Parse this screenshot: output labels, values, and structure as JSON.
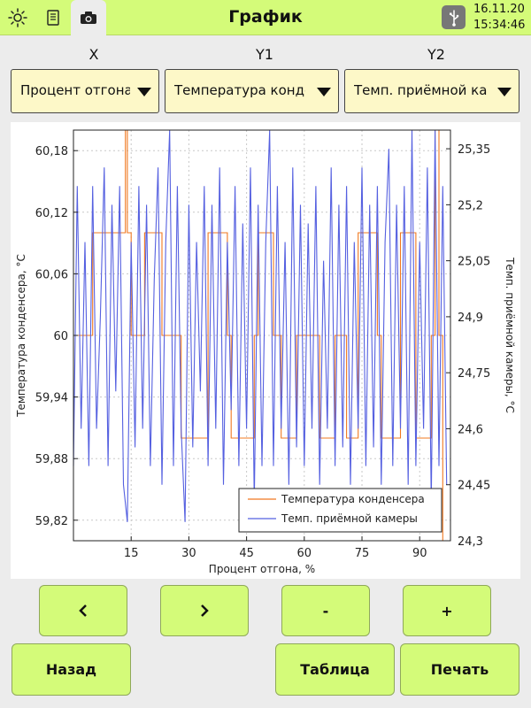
{
  "topbar": {
    "title": "График",
    "icons": [
      "sun-icon",
      "notebook-icon",
      "camera-icon",
      "usb-icon"
    ],
    "date": "16.11.20",
    "time": "15:34:46"
  },
  "axes": {
    "x_label": "X",
    "y1_label": "Y1",
    "y2_label": "Y2"
  },
  "selectors": {
    "x_value": "Процент отгона",
    "y1_value": "Температура конденсера",
    "y2_value": "Темп. приёмной камеры"
  },
  "buttons": {
    "prev": "‹",
    "next": "›",
    "zoom_out": "-",
    "zoom_in": "+",
    "back": "Назад",
    "table": "Таблица",
    "print": "Печать"
  },
  "colors": {
    "accent": "#d4fb79",
    "series1": "#f07820",
    "series2": "#5560e0"
  },
  "chart_data": {
    "type": "line",
    "xlabel": "Процент отгона, %",
    "ylabel": "Температура конденсера, °C",
    "y2label": "Темп. приёмной камеры, °C",
    "xlim": [
      0,
      98
    ],
    "ylim": [
      59.8,
      60.2
    ],
    "y2lim": [
      24.3,
      25.4
    ],
    "x_ticks": [
      15,
      30,
      45,
      60,
      75,
      90
    ],
    "x_tick_labels": [
      "15",
      "30",
      "45",
      "60",
      "75",
      "90"
    ],
    "y_ticks": [
      59.82,
      59.88,
      59.94,
      60,
      60.06,
      60.12,
      60.18
    ],
    "y_tick_labels": [
      "59,82",
      "59,88",
      "59,94",
      "60",
      "60,06",
      "60,12",
      "60,18"
    ],
    "y2_ticks": [
      24.3,
      24.45,
      24.6,
      24.75,
      24.9,
      25.05,
      25.2,
      25.35
    ],
    "y2_tick_labels": [
      "24,3",
      "24,45",
      "24,6",
      "24,75",
      "24,9",
      "25,05",
      "25,2",
      "25,35"
    ],
    "grid": true,
    "legend_position": "bottom-right",
    "series": [
      {
        "name": "Температура конденсера",
        "axis": "left",
        "x": [
          0,
          4,
          5,
          13,
          13.5,
          14,
          15,
          18,
          18.5,
          22,
          23,
          27,
          28,
          31,
          35,
          36,
          40,
          41,
          45,
          47,
          48,
          50,
          52,
          54,
          55,
          58,
          63,
          64,
          66,
          68,
          70,
          71,
          73,
          74,
          78,
          79,
          80,
          84,
          85,
          88,
          89,
          92,
          93,
          94,
          95,
          96
        ],
        "y": [
          60,
          60,
          60.1,
          60.1,
          60.2,
          60.1,
          60,
          60,
          60.1,
          60.1,
          60,
          60,
          59.9,
          59.9,
          60.1,
          60.1,
          60,
          59.9,
          59.9,
          60,
          60.1,
          60.1,
          60,
          59.9,
          59.9,
          60,
          60,
          59.9,
          59.9,
          60,
          60,
          59.9,
          59.9,
          60.1,
          60.1,
          60,
          59.9,
          59.9,
          60.1,
          60.1,
          59.9,
          59.9,
          60,
          60.2,
          60,
          59.8
        ]
      },
      {
        "name": "Темп. приёмной камеры",
        "axis": "right",
        "x": [
          0,
          1,
          2,
          3,
          4,
          5,
          6,
          7,
          8,
          9,
          10,
          11,
          12,
          13,
          14,
          15,
          16,
          17,
          18,
          19,
          20,
          21,
          22,
          23,
          24,
          25,
          26,
          27,
          28,
          29,
          30,
          31,
          32,
          33,
          34,
          35,
          36,
          37,
          38,
          39,
          40,
          41,
          42,
          43,
          44,
          45,
          46,
          47,
          48,
          49,
          50,
          51,
          52,
          53,
          54,
          55,
          56,
          57,
          58,
          59,
          60,
          61,
          62,
          63,
          64,
          65,
          66,
          67,
          68,
          69,
          70,
          71,
          72,
          73,
          74,
          75,
          76,
          77,
          78,
          79,
          80,
          81,
          82,
          83,
          84,
          85,
          86,
          87,
          88,
          89,
          90,
          91,
          92,
          93,
          94,
          95,
          96,
          97
        ],
        "y": [
          24.5,
          25.25,
          24.6,
          25.1,
          24.5,
          25.25,
          24.6,
          24.9,
          25.3,
          24.5,
          25.2,
          24.7,
          25.25,
          24.45,
          24.35,
          25.1,
          24.55,
          25.25,
          24.6,
          25.2,
          24.5,
          25.0,
          25.3,
          24.45,
          25.1,
          25.4,
          24.5,
          25.25,
          24.6,
          24.35,
          25.2,
          24.55,
          25.1,
          24.7,
          25.25,
          24.5,
          25.2,
          24.6,
          25.3,
          24.45,
          25.1,
          24.65,
          25.25,
          24.5,
          25.15,
          24.6,
          25.3,
          24.4,
          25.2,
          24.5,
          25.1,
          25.4,
          24.5,
          25.25,
          24.6,
          25.1,
          24.45,
          25.3,
          24.55,
          25.2,
          24.5,
          25.15,
          24.6,
          25.25,
          24.45,
          25.05,
          24.6,
          25.3,
          24.5,
          25.2,
          24.55,
          25.25,
          24.45,
          25.1,
          24.6,
          25.3,
          24.5,
          25.2,
          24.55,
          25.25,
          24.45,
          25.1,
          25.35,
          24.5,
          25.2,
          24.6,
          25.25,
          24.45,
          25.4,
          24.5,
          25.1,
          24.6,
          25.3,
          24.4,
          25.4,
          24.5,
          25.25,
          24.45
        ]
      }
    ]
  }
}
